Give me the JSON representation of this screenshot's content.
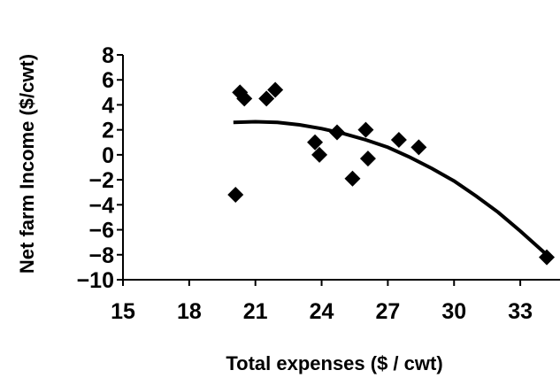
{
  "chart_data": {
    "type": "scatter",
    "title": "",
    "xlabel": "Total expenses ($ / cwt)",
    "ylabel": "Net farm Income ($/cwt)",
    "xlim": [
      15,
      35
    ],
    "ylim": [
      -10,
      8
    ],
    "xticks": [
      15,
      18,
      21,
      24,
      27,
      30,
      33
    ],
    "yticks": [
      8,
      6,
      4,
      2,
      0,
      -2,
      -4,
      -6,
      -8,
      -10
    ],
    "grid": false,
    "series": [
      {
        "marker": "diamond",
        "color": "#000000",
        "points": [
          {
            "x": 20.1,
            "y": -3.2
          },
          {
            "x": 20.3,
            "y": 5.0
          },
          {
            "x": 20.5,
            "y": 4.5
          },
          {
            "x": 21.5,
            "y": 4.5
          },
          {
            "x": 21.9,
            "y": 5.2
          },
          {
            "x": 23.7,
            "y": 1.0
          },
          {
            "x": 23.9,
            "y": 0.0
          },
          {
            "x": 24.7,
            "y": 1.8
          },
          {
            "x": 25.4,
            "y": -1.9
          },
          {
            "x": 26.0,
            "y": 2.0
          },
          {
            "x": 26.1,
            "y": -0.3
          },
          {
            "x": 27.5,
            "y": 1.2
          },
          {
            "x": 28.4,
            "y": 0.6
          },
          {
            "x": 34.2,
            "y": -8.2
          }
        ]
      }
    ],
    "trendline": {
      "type": "polynomial",
      "x": [
        20.0,
        21.0,
        22.0,
        23.0,
        24.0,
        25.0,
        26.0,
        27.0,
        28.0,
        29.0,
        30.0,
        31.0,
        32.0,
        33.0,
        34.2
      ],
      "y": [
        2.6,
        2.65,
        2.6,
        2.4,
        2.1,
        1.7,
        1.2,
        0.6,
        -0.2,
        -1.1,
        -2.1,
        -3.3,
        -4.6,
        -6.1,
        -8.0
      ]
    }
  }
}
